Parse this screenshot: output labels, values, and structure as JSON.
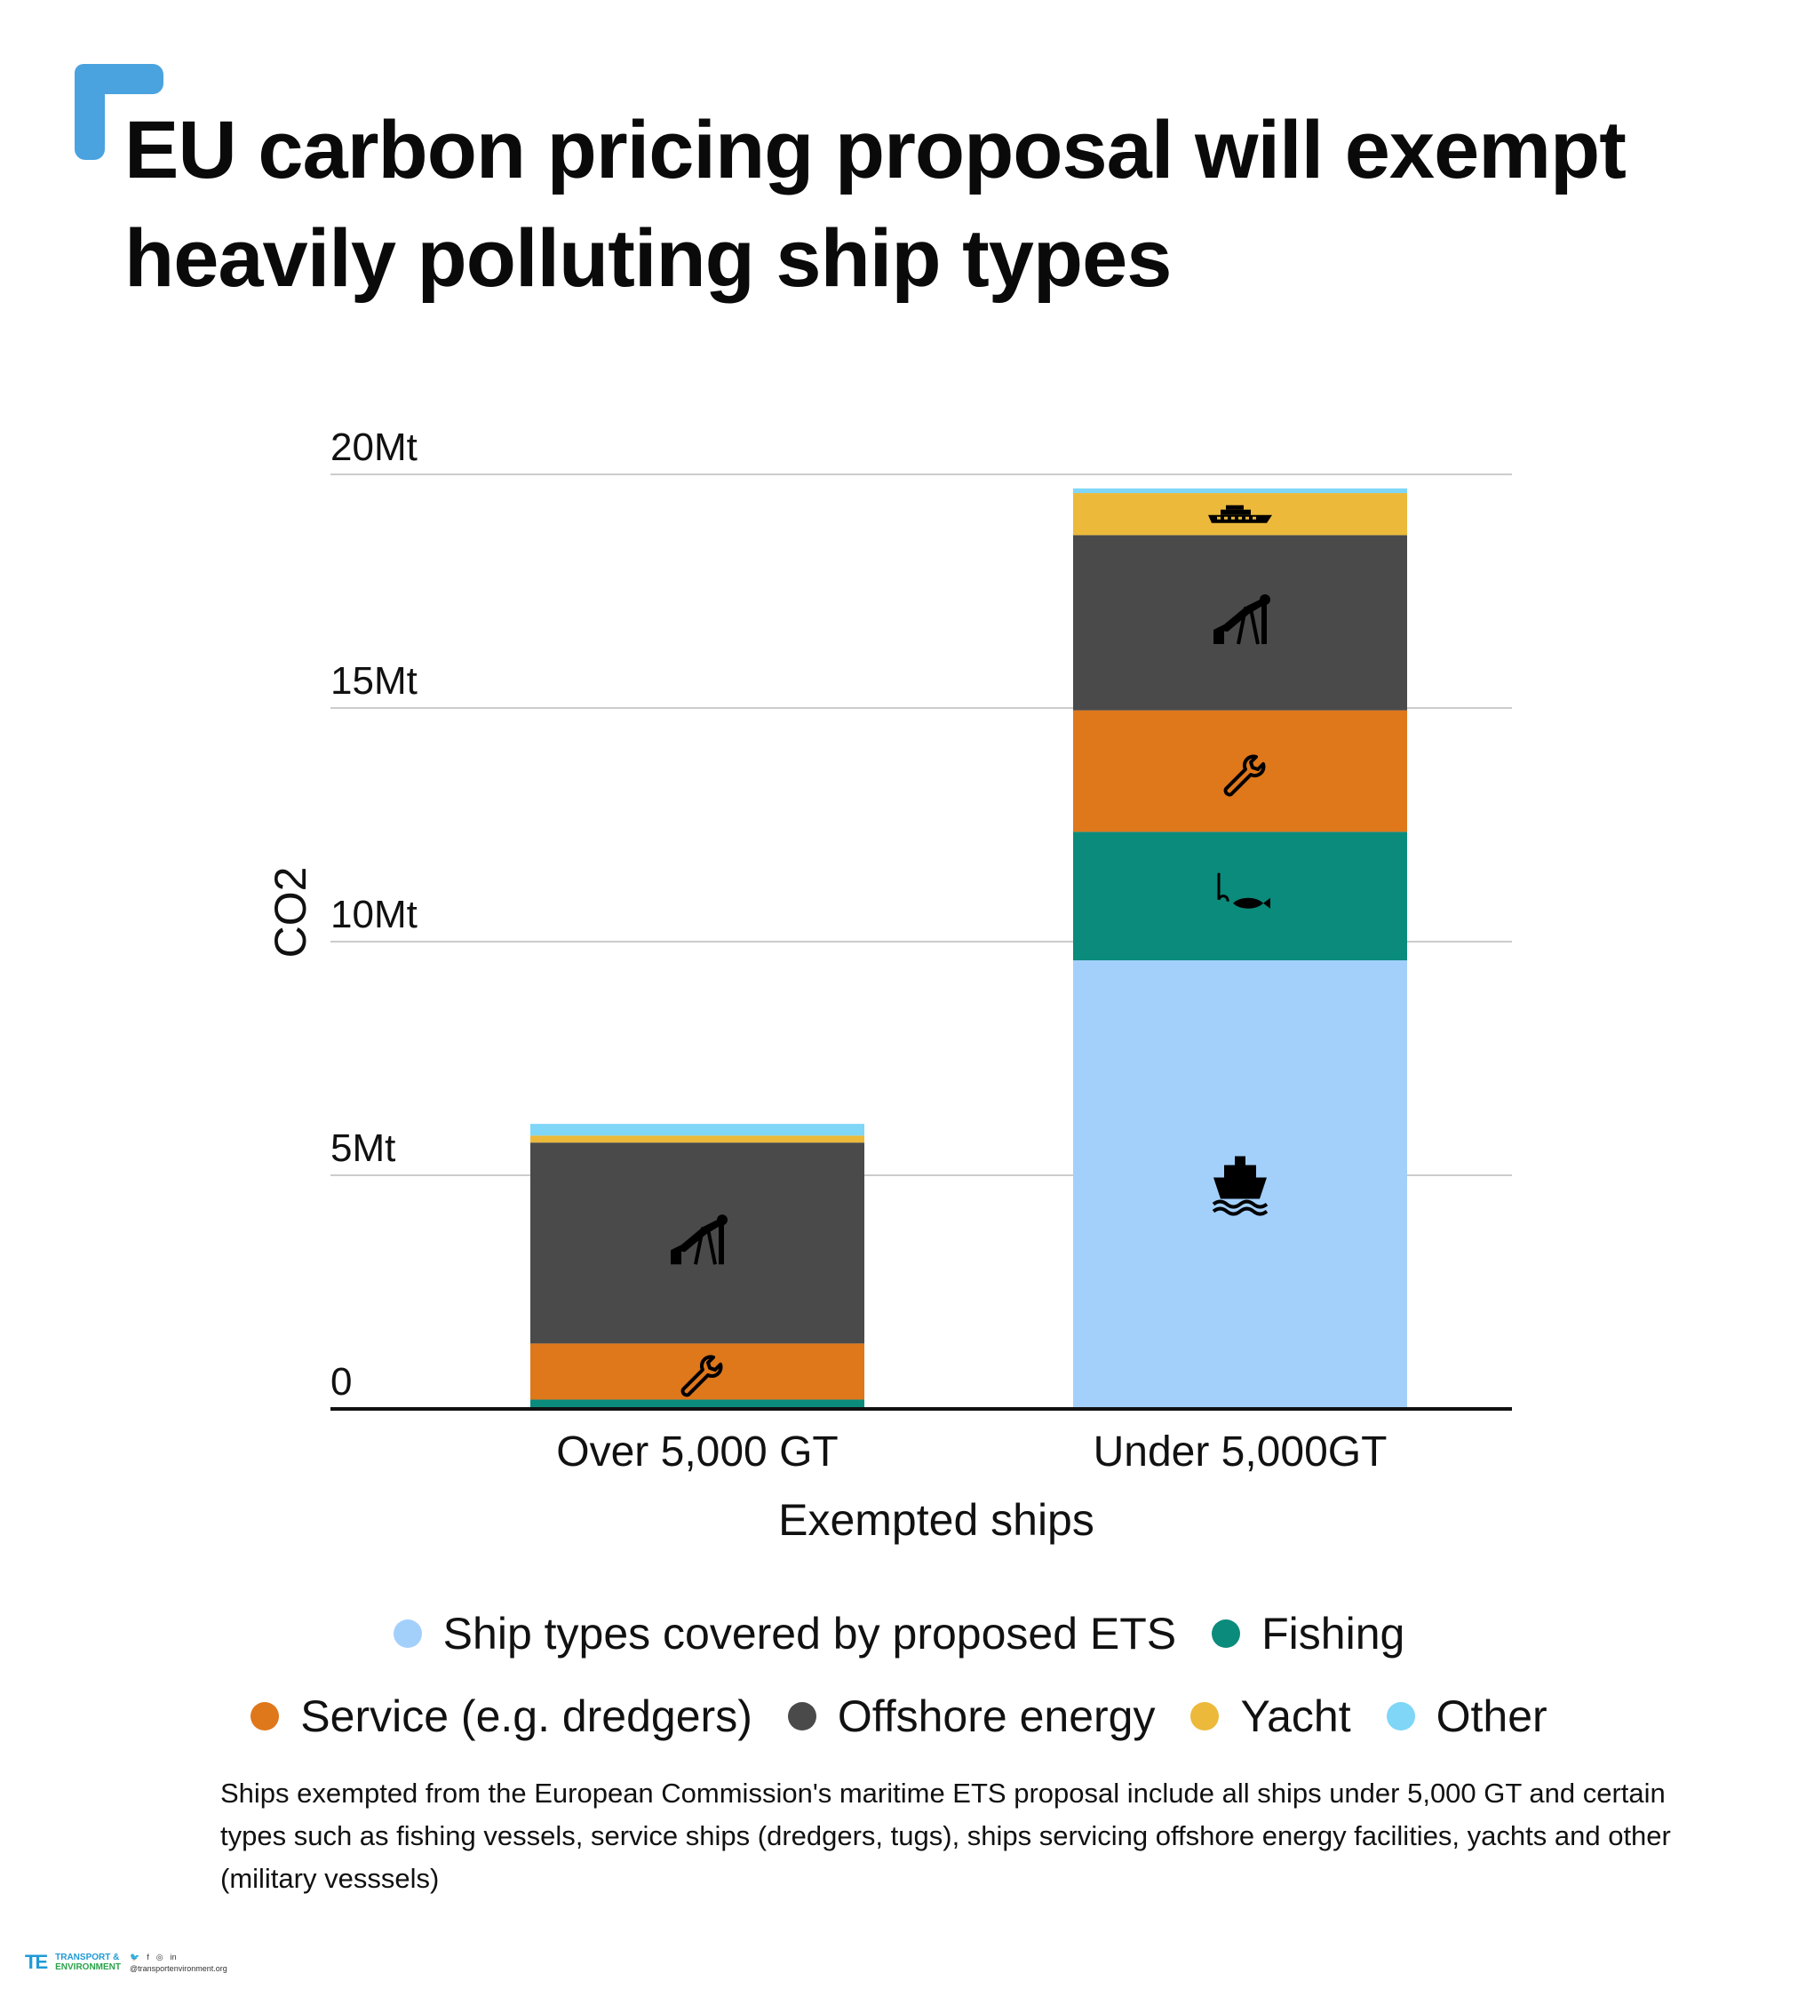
{
  "title": "EU carbon pricing proposal will exempt heavily polluting ship types",
  "colors": {
    "corner_mark": "#4aa3df",
    "ets": "#a3d0fb",
    "fishing": "#0b8b7c",
    "service": "#df771b",
    "offshore": "#4a4a4a",
    "yacht": "#ecb93b",
    "other": "#7fd6f7",
    "grid": "#cccccc",
    "axis": "#111111"
  },
  "chart_data": {
    "type": "bar",
    "stacked": true,
    "categories": [
      "Over 5,000 GT",
      "Under 5,000GT"
    ],
    "series": [
      {
        "name": "Ship types covered by proposed ETS",
        "key": "ets",
        "icon": "cargo-ship-icon",
        "values": [
          0,
          9.6
        ]
      },
      {
        "name": "Fishing",
        "key": "fishing",
        "icon": "fishing-hook-icon",
        "values": [
          0.2,
          2.75
        ]
      },
      {
        "name": "Service (e.g. dredgers)",
        "key": "service",
        "icon": "wrench-icon",
        "values": [
          1.2,
          2.6
        ]
      },
      {
        "name": "Offshore energy",
        "key": "offshore",
        "icon": "oil-pump-icon",
        "values": [
          4.3,
          3.75
        ]
      },
      {
        "name": "Yacht",
        "key": "yacht",
        "icon": "yacht-icon",
        "values": [
          0.15,
          0.9
        ]
      },
      {
        "name": "Other",
        "key": "other",
        "icon": "",
        "values": [
          0.25,
          0.1
        ]
      }
    ],
    "xlabel": "Exempted ships",
    "ylabel": "CO2",
    "ylim": [
      0,
      20
    ],
    "yticks": [
      0,
      5,
      10,
      15,
      20
    ],
    "ytick_labels": [
      "0",
      "5Mt",
      "10Mt",
      "15Mt",
      "20Mt"
    ],
    "grid": true,
    "legend_position": "bottom"
  },
  "legend": {
    "row1": [
      "Ship types covered by proposed ETS",
      "Fishing"
    ],
    "row2": [
      "Service (e.g. dredgers)",
      "Offshore energy",
      "Yacht",
      "Other"
    ]
  },
  "footnote": "Ships exempted from the European Commission's maritime ETS proposal include all ships under 5,000 GT and certain types such as fishing  vessels, service ships (dredgers, tugs), ships servicing offshore energy facilities, yachts and other (military vesssels)",
  "footer": {
    "logo_mark": "TE",
    "logo_line1": "TRANSPORT &",
    "logo_line2": "ENVIRONMENT",
    "website": "@transportenvironment.org"
  }
}
